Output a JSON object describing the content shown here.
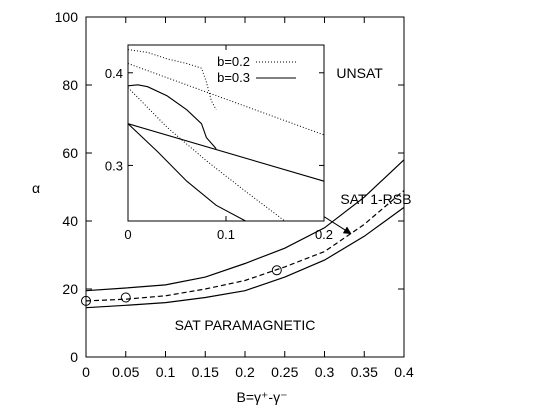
{
  "chart_data": [
    {
      "type": "line",
      "xlabel": "B=γ⁺-γ⁻",
      "ylabel": "α",
      "xlim": [
        0,
        0.4
      ],
      "ylim": [
        0,
        100
      ],
      "x_ticks": [
        "0",
        "0.05",
        "0.1",
        "0.15",
        "0.2",
        "0.25",
        "0.3",
        "0.35",
        "0.4"
      ],
      "y_ticks": [
        "0",
        "20",
        "40",
        "60",
        "80",
        "100"
      ],
      "grid": false,
      "series": [
        {
          "style": "solid",
          "points": [
            [
              0,
              19.5
            ],
            [
              0.05,
              20.3
            ],
            [
              0.1,
              21.2
            ],
            [
              0.15,
              23.5
            ],
            [
              0.2,
              27.5
            ],
            [
              0.25,
              32
            ],
            [
              0.3,
              38
            ],
            [
              0.35,
              47
            ],
            [
              0.4,
              58
            ]
          ]
        },
        {
          "style": "dashed",
          "points": [
            [
              0,
              16.5
            ],
            [
              0.05,
              17
            ],
            [
              0.1,
              18
            ],
            [
              0.15,
              20
            ],
            [
              0.2,
              22.5
            ],
            [
              0.25,
              26.5
            ],
            [
              0.3,
              31
            ],
            [
              0.35,
              39
            ],
            [
              0.4,
              49
            ]
          ]
        },
        {
          "style": "solid",
          "points": [
            [
              0,
              14.5
            ],
            [
              0.05,
              15.2
            ],
            [
              0.1,
              16
            ],
            [
              0.15,
              17.5
            ],
            [
              0.2,
              19.5
            ],
            [
              0.25,
              23.5
            ],
            [
              0.3,
              28.5
            ],
            [
              0.35,
              35.5
            ],
            [
              0.4,
              44
            ]
          ]
        }
      ],
      "markers": [
        [
          0,
          16.5
        ],
        [
          0.05,
          17.5
        ],
        [
          0.24,
          25.5
        ]
      ],
      "annotations": [
        {
          "text": "UNSAT",
          "x": 0.315,
          "y": 82
        },
        {
          "text": "SAT 1-RSB",
          "x": 0.32,
          "y": 45
        },
        {
          "text": "SAT PARAMAGNETIC",
          "x": 0.2,
          "y": 8
        }
      ],
      "arrow": {
        "from": [
          0.298,
          41.5
        ],
        "to": [
          0.333,
          36.3
        ]
      },
      "inset": {
        "type": "line",
        "xlim": [
          0,
          0.2
        ],
        "ylim": [
          0.24,
          0.43
        ],
        "x_ticks": [
          "0",
          "0.1",
          "0.2"
        ],
        "y_ticks": [
          "0.3",
          "0.4"
        ],
        "legend": [
          {
            "label": "b=0.2",
            "style": "dotted"
          },
          {
            "label": "b=0.3",
            "style": "solid"
          }
        ],
        "legend_position": "top-right",
        "series": [
          {
            "name": "b=0.2",
            "style": "dotted",
            "points": [
              [
                0,
                0.41
              ],
              [
                0.2,
                0.333
              ]
            ]
          },
          {
            "name": "b=0.2",
            "style": "dotted",
            "points": [
              [
                0,
                0.384
              ],
              [
                0.04,
                0.341
              ],
              [
                0.08,
                0.305
              ],
              [
                0.12,
                0.272
              ],
              [
                0.16,
                0.24
              ]
            ]
          },
          {
            "name": "b=0.2",
            "style": "dotted",
            "points": [
              [
                0,
                0.425
              ],
              [
                0.02,
                0.422
              ],
              [
                0.04,
                0.415
              ],
              [
                0.06,
                0.41
              ],
              [
                0.075,
                0.405
              ],
              [
                0.08,
                0.39
              ],
              [
                0.085,
                0.37
              ],
              [
                0.09,
                0.36
              ]
            ]
          },
          {
            "name": "b=0.3",
            "style": "solid",
            "points": [
              [
                0,
                0.345
              ],
              [
                0.2,
                0.283
              ]
            ]
          },
          {
            "name": "b=0.3",
            "style": "solid",
            "points": [
              [
                0,
                0.345
              ],
              [
                0.03,
                0.315
              ],
              [
                0.06,
                0.283
              ],
              [
                0.09,
                0.257
              ],
              [
                0.12,
                0.24
              ]
            ]
          },
          {
            "name": "b=0.3",
            "style": "solid",
            "points": [
              [
                0,
                0.386
              ],
              [
                0.01,
                0.387
              ],
              [
                0.02,
                0.385
              ],
              [
                0.04,
                0.375
              ],
              [
                0.06,
                0.36
              ],
              [
                0.075,
                0.345
              ],
              [
                0.08,
                0.33
              ],
              [
                0.09,
                0.318
              ]
            ]
          }
        ]
      }
    }
  ]
}
